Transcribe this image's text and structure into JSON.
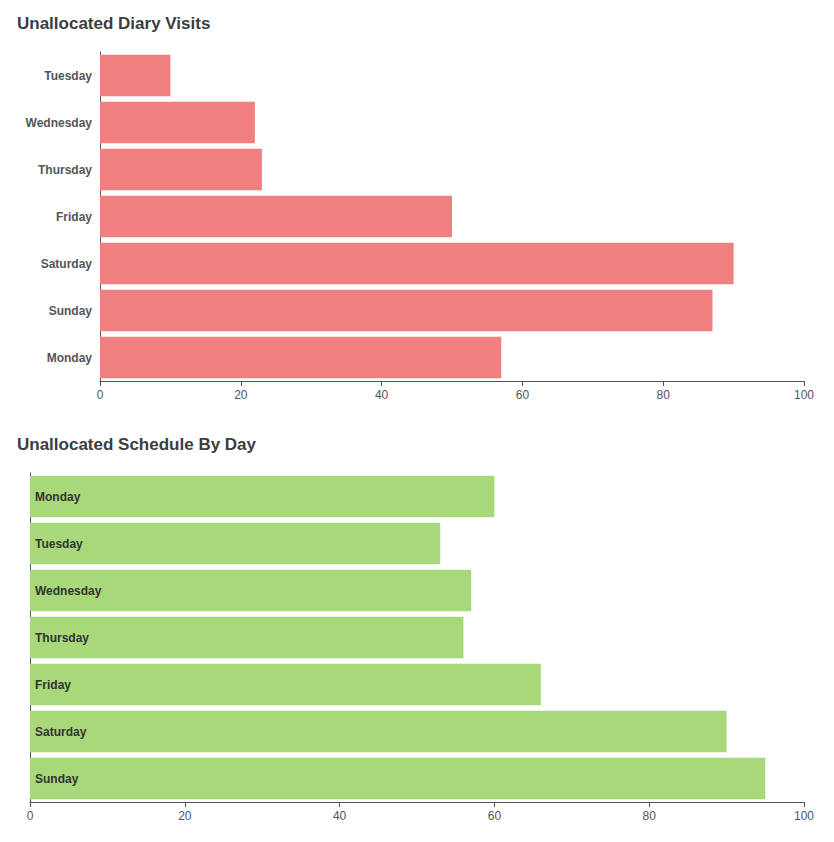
{
  "chart_data": [
    {
      "type": "bar",
      "title": "Unallocated Diary Visits",
      "orientation": "horizontal",
      "categories": [
        "Tuesday",
        "Wednesday",
        "Thursday",
        "Friday",
        "Saturday",
        "Sunday",
        "Monday"
      ],
      "values": [
        10,
        22,
        23,
        50,
        90,
        87,
        57
      ],
      "color": "#F08080",
      "xlim": [
        0,
        100
      ],
      "xticks": [
        0,
        20,
        40,
        60,
        80,
        100
      ],
      "grid": false
    },
    {
      "type": "bar",
      "title": "Unallocated Schedule By Day",
      "orientation": "horizontal",
      "categories": [
        "Monday",
        "Tuesday",
        "Wednesday",
        "Thursday",
        "Friday",
        "Saturday",
        "Sunday"
      ],
      "values": [
        60,
        53,
        57,
        56,
        66,
        90,
        95
      ],
      "color": "#a8d87a",
      "xlim": [
        0,
        100
      ],
      "xticks": [
        0,
        20,
        40,
        60,
        80,
        100
      ],
      "grid": false,
      "tick_labels": "x"
    }
  ]
}
